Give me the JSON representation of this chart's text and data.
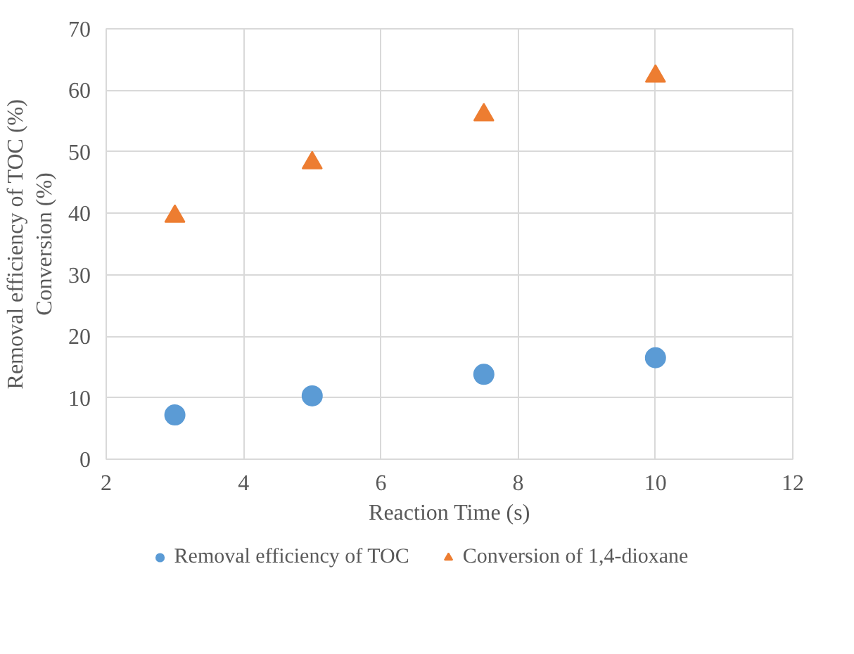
{
  "chart_data": {
    "type": "scatter",
    "xlabel": "Reaction Time (s)",
    "ylabel": "Removal efficiency of TOC (%)\nConversion (%)",
    "x": [
      3,
      5,
      7.5,
      10
    ],
    "series": [
      {
        "name": "Removal efficiency of TOC",
        "color": "#5b9bd5",
        "marker": "circle",
        "values": [
          7.2,
          10.3,
          13.8,
          16.5
        ]
      },
      {
        "name": "Conversion of 1,4-dioxane",
        "color": "#ed7d31",
        "marker": "triangle",
        "values": [
          39.5,
          48.2,
          56.0,
          62.3
        ]
      }
    ],
    "xlim": [
      2,
      12
    ],
    "xticks": [
      2,
      4,
      6,
      8,
      10,
      12
    ],
    "ylim": [
      0,
      70
    ],
    "yticks": [
      0,
      10,
      20,
      30,
      40,
      50,
      60,
      70
    ],
    "grid": true,
    "legend": "bottom"
  }
}
